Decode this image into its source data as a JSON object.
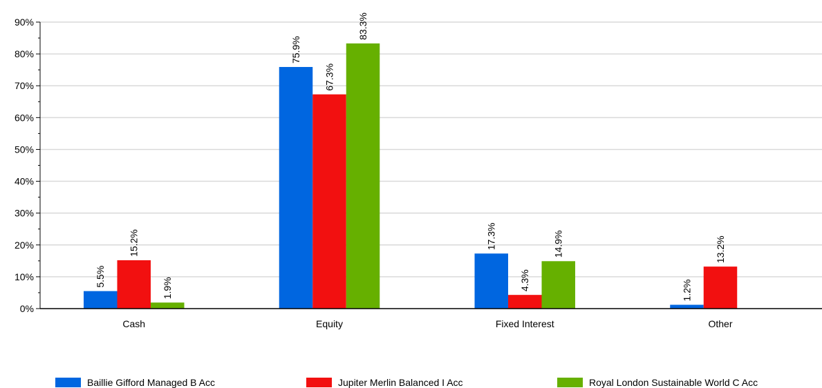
{
  "chart_data": {
    "type": "bar",
    "categories": [
      "Cash",
      "Equity",
      "Fixed Interest",
      "Other"
    ],
    "series": [
      {
        "name": "Baillie Gifford Managed B Acc",
        "color": "#0066e0",
        "values": [
          5.5,
          75.9,
          17.3,
          1.2
        ],
        "labels": [
          "5.5%",
          "75.9%",
          "17.3%",
          "1.2%"
        ]
      },
      {
        "name": "Jupiter Merlin Balanced I Acc",
        "color": "#f21010",
        "values": [
          15.2,
          67.3,
          4.3,
          13.2
        ],
        "labels": [
          "15.2%",
          "67.3%",
          "4.3%",
          "13.2%"
        ]
      },
      {
        "name": "Royal London Sustainable World C Acc",
        "color": "#66b000",
        "values": [
          1.9,
          83.3,
          14.9,
          0.1
        ],
        "labels": [
          "1.9%",
          "83.3%",
          "14.9%",
          ""
        ]
      }
    ],
    "ylim": [
      0,
      90
    ],
    "yticks": [
      "0%",
      "10%",
      "20%",
      "30%",
      "40%",
      "50%",
      "60%",
      "70%",
      "80%",
      "90%"
    ],
    "grid": true,
    "legend_position": "bottom",
    "title": "",
    "xlabel": "",
    "ylabel": ""
  }
}
